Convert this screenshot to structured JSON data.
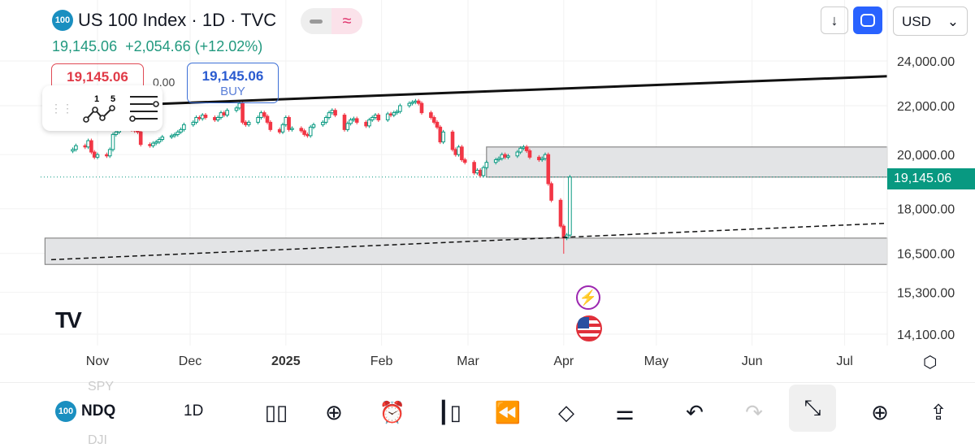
{
  "header": {
    "badge": "100",
    "title": "US 100 Index · 1D · TVC",
    "price": "19,145.06",
    "change": "+2,054.66 (+12.02%)",
    "sell_price": "19,145.06",
    "spread": "0.00",
    "buy_price": "19,145.06",
    "buy_label": "BUY",
    "currency": "USD",
    "pill_icons": [
      "minus-icon",
      "approx-icon"
    ],
    "tool_labels": [
      "1",
      "5"
    ]
  },
  "colors": {
    "up": "#089981",
    "down": "#f23645",
    "accent": "#2962ff",
    "last_price": "#089981"
  },
  "chart_data": {
    "type": "candlestick",
    "scale": "log",
    "ylim": [
      14100,
      24000
    ],
    "y_ticks": [
      "24,000.00",
      "22,000.00",
      "20,000.00",
      "18,000.00",
      "16,500.00",
      "15,300.00",
      "14,100.00"
    ],
    "y_tick_values": [
      24000,
      22000,
      20000,
      18000,
      16500,
      15300,
      14100
    ],
    "x_ticks": [
      "Nov",
      "Dec",
      "2025",
      "Feb",
      "Mar",
      "Apr",
      "May",
      "Jun",
      "Jul"
    ],
    "x_tick_dates": [
      "2024-11-01",
      "2024-12-01",
      "2025-01-01",
      "2025-02-01",
      "2025-03-01",
      "2025-04-01",
      "2025-05-01",
      "2025-06-01",
      "2025-07-01"
    ],
    "xlim": [
      "2024-10-15",
      "2025-07-28"
    ],
    "last_price": 19145.06,
    "last_price_label": "19,145.06",
    "first_date": "2024-10-24",
    "closes": [
      20200,
      20350,
      20300,
      20550,
      20100,
      19900,
      20000,
      19950,
      20200,
      20800,
      20900,
      21100,
      21050,
      21000,
      20950,
      20900,
      20400,
      20350,
      20450,
      20500,
      20600,
      20700,
      20750,
      20800,
      20900,
      21000,
      21200,
      21300,
      21500,
      21450,
      21600,
      21500,
      21400,
      21500,
      21700,
      21600,
      21800,
      21900,
      22100,
      21300,
      21200,
      21300,
      21500,
      21700,
      21550,
      21300,
      21000,
      20900,
      21200,
      21500,
      21000,
      21050,
      20950,
      20800,
      20750,
      21100,
      21200,
      21300,
      21500,
      21700,
      21800,
      21600,
      21000,
      21250,
      21400,
      21450,
      21300,
      21150,
      21400,
      21500,
      21600,
      21400,
      21650,
      21600,
      21700,
      21750,
      22000,
      22100,
      22150,
      22200,
      22100,
      21700,
      21500,
      21300,
      21100,
      20500,
      20900,
      20200,
      20000,
      20300,
      19800,
      19700,
      19300,
      19400,
      19200,
      19500,
      19700,
      19800,
      19850,
      20000,
      19900,
      19950,
      20100,
      20250,
      20300,
      20150,
      19900,
      19800,
      19850,
      20000,
      18900,
      18300,
      17400,
      17000,
      17100,
      19145.06
    ],
    "trend_lines": [
      {
        "style": "solid",
        "from": [
          "2024-10-17",
          21900
        ],
        "to": [
          "2025-07-28",
          23300
        ]
      },
      {
        "style": "dashed",
        "from": [
          "2024-10-17",
          16300
        ],
        "to": [
          "2025-07-28",
          17500
        ]
      }
    ],
    "zones": [
      {
        "from": "2025-03-07",
        "to": "2025-07-28",
        "top": 20300,
        "bottom": 19145.06
      },
      {
        "from": "2024-10-15",
        "to": "2025-07-28",
        "top": 17000,
        "bottom": 16150
      }
    ],
    "events": [
      "lightning-icon",
      "us-flag-icon"
    ]
  },
  "toolbar": {
    "symbol": "NDQ",
    "symbol_above": "SPY",
    "symbol_below": "DJI",
    "interval": "1D",
    "icons": [
      "grid-icon",
      "plus-circle-icon",
      "alarm-icon",
      "candles-icon",
      "replay-icon",
      "layers-icon",
      "settings-sliders-icon",
      "undo-icon",
      "redo-icon",
      "collapse-icon",
      "add-indicator-icon",
      "share-icon"
    ]
  }
}
